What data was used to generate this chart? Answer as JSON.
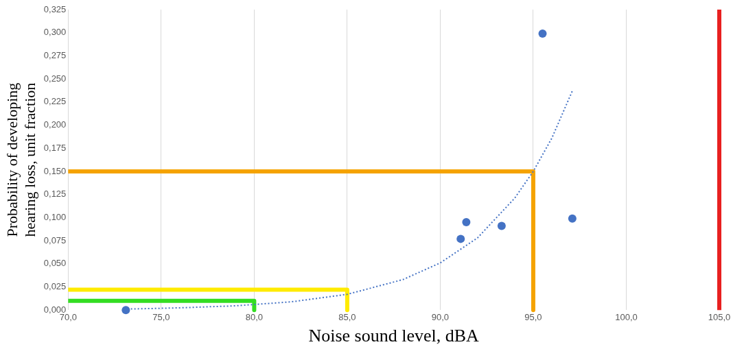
{
  "chart_data": {
    "type": "scatter",
    "xlabel": "Noise sound level, dBA",
    "ylabel": "Probability of developing hearing loss, unit fraction",
    "xlim": [
      70,
      105
    ],
    "xticks": [
      {
        "value": 70,
        "label": "70,0"
      },
      {
        "value": 75,
        "label": "75,0"
      },
      {
        "value": 80,
        "label": "80,0"
      },
      {
        "value": 85,
        "label": "85,0"
      },
      {
        "value": 90,
        "label": "90,0"
      },
      {
        "value": 95,
        "label": "95,0"
      },
      {
        "value": 100,
        "label": "100,0"
      },
      {
        "value": 105,
        "label": "105,0"
      }
    ],
    "ylim": [
      0,
      0.325
    ],
    "yticks": [
      {
        "value": 0,
        "label": "0,000"
      },
      {
        "value": 0.025,
        "label": "0,025"
      },
      {
        "value": 0.05,
        "label": "0,050"
      },
      {
        "value": 0.075,
        "label": "0,075"
      },
      {
        "value": 0.1,
        "label": "0,100"
      },
      {
        "value": 0.125,
        "label": "0,125"
      },
      {
        "value": 0.15,
        "label": "0,150"
      },
      {
        "value": 0.175,
        "label": "0,175"
      },
      {
        "value": 0.2,
        "label": "0,200"
      },
      {
        "value": 0.225,
        "label": "0,225"
      },
      {
        "value": 0.25,
        "label": "0,250"
      },
      {
        "value": 0.275,
        "label": "0,275"
      },
      {
        "value": 0.3,
        "label": "0,300"
      },
      {
        "value": 0.325,
        "label": "0,325"
      }
    ],
    "grid": "x",
    "legend": false,
    "ref_lines": [
      {
        "axis": "x",
        "value": 105,
        "color": "#e82020",
        "line_style": "solid"
      }
    ],
    "series": [
      {
        "type": "line",
        "color": "#4472c4",
        "line_style": "dotted",
        "marker": "none",
        "x": [
          73,
          76,
          79,
          82,
          85,
          88,
          90,
          92,
          94,
          95,
          96,
          97.1
        ],
        "values": [
          0.001,
          0.0024,
          0.0046,
          0.0089,
          0.017,
          0.033,
          0.051,
          0.078,
          0.121,
          0.15,
          0.186,
          0.237
        ]
      },
      {
        "type": "line",
        "color": "#f5a300",
        "line_style": "solid",
        "marker": "none",
        "x": [
          70,
          95,
          95
        ],
        "values": [
          0.15,
          0.15,
          0
        ]
      },
      {
        "type": "line",
        "color": "#ffeb00",
        "line_style": "solid",
        "marker": "none",
        "x": [
          70,
          85,
          85
        ],
        "values": [
          0.022,
          0.022,
          0
        ]
      },
      {
        "type": "line",
        "color": "#33dd22",
        "line_style": "solid",
        "marker": "none",
        "x": [
          70,
          80,
          80
        ],
        "values": [
          0.01,
          0.01,
          0
        ]
      },
      {
        "type": "scatter",
        "color": "#4472c4",
        "marker": "circle",
        "x": [
          73.1,
          91.1,
          91.4,
          93.3,
          95.5,
          97.1
        ],
        "values": [
          0,
          0.077,
          0.095,
          0.091,
          0.299,
          0.099
        ]
      }
    ]
  }
}
